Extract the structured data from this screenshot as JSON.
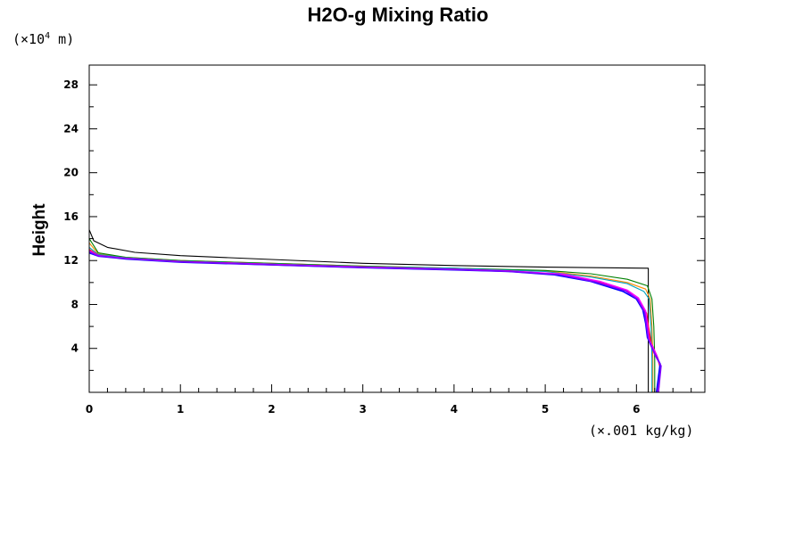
{
  "chart_data": {
    "type": "line",
    "title": "H2O-g Mixing Ratio",
    "ylabel": "Height",
    "xlabel": "",
    "x_unit": "(×.001 kg/kg)",
    "y_unit_prefix": "(×10",
    "y_unit_exp": "4",
    "y_unit_suffix": " m)",
    "xlim": [
      0,
      6.75
    ],
    "ylim": [
      0,
      29.8
    ],
    "x_ticks": [
      0,
      1,
      2,
      3,
      4,
      5,
      6
    ],
    "x_tick_labels": [
      "0",
      "1",
      "2",
      "3",
      "4",
      "5",
      "6"
    ],
    "y_ticks": [
      4,
      8,
      12,
      16,
      20,
      24,
      28
    ],
    "y_tick_labels": [
      "4",
      "8",
      "12",
      "16",
      "20",
      "24",
      "28"
    ],
    "grid": false,
    "legend": "none",
    "series": [
      {
        "color": "#000000",
        "points": [
          [
            6.13,
            0
          ],
          [
            6.13,
            11.3
          ],
          [
            5.0,
            11.4
          ],
          [
            4.0,
            11.55
          ],
          [
            3.0,
            11.75
          ],
          [
            2.0,
            12.1
          ],
          [
            1.0,
            12.45
          ],
          [
            0.5,
            12.75
          ],
          [
            0.2,
            13.2
          ],
          [
            0.05,
            13.8
          ],
          [
            0.0,
            14.8
          ]
        ]
      },
      {
        "color": "#ff8c00",
        "points": [
          [
            6.18,
            0
          ],
          [
            6.18,
            3
          ],
          [
            6.17,
            6
          ],
          [
            6.15,
            8.5
          ],
          [
            6.1,
            9.4
          ],
          [
            5.9,
            10.0
          ],
          [
            5.5,
            10.6
          ],
          [
            5.0,
            11.05
          ],
          [
            4.0,
            11.3
          ],
          [
            3.0,
            11.5
          ],
          [
            2.0,
            11.75
          ],
          [
            1.0,
            12.0
          ],
          [
            0.4,
            12.3
          ],
          [
            0.1,
            12.6
          ],
          [
            0.0,
            13.6
          ]
        ]
      },
      {
        "color": "#008000",
        "points": [
          [
            6.2,
            0
          ],
          [
            6.2,
            3
          ],
          [
            6.19,
            6
          ],
          [
            6.17,
            8.5
          ],
          [
            6.12,
            9.7
          ],
          [
            5.9,
            10.3
          ],
          [
            5.5,
            10.8
          ],
          [
            5.0,
            11.1
          ],
          [
            4.0,
            11.3
          ],
          [
            3.0,
            11.5
          ],
          [
            2.0,
            11.75
          ],
          [
            1.0,
            12.0
          ],
          [
            0.4,
            12.3
          ],
          [
            0.1,
            12.7
          ],
          [
            0.0,
            14.0
          ]
        ]
      },
      {
        "color": "#00a0c0",
        "points": [
          [
            6.17,
            0
          ],
          [
            6.17,
            3
          ],
          [
            6.16,
            6
          ],
          [
            6.14,
            8.5
          ],
          [
            6.08,
            9.2
          ],
          [
            5.9,
            9.9
          ],
          [
            5.5,
            10.5
          ],
          [
            5.0,
            11.0
          ],
          [
            4.0,
            11.3
          ],
          [
            3.0,
            11.45
          ],
          [
            2.0,
            11.7
          ],
          [
            1.0,
            11.95
          ],
          [
            0.4,
            12.25
          ],
          [
            0.1,
            12.55
          ],
          [
            0.0,
            13.2
          ]
        ]
      },
      {
        "color": "#ff0000",
        "points": [
          [
            6.24,
            0
          ],
          [
            6.26,
            2.3
          ],
          [
            6.23,
            3.2
          ],
          [
            6.16,
            4.5
          ],
          [
            6.13,
            6
          ],
          [
            6.11,
            7.2
          ],
          [
            6.0,
            8.5
          ],
          [
            5.9,
            9.2
          ],
          [
            5.6,
            10.0
          ],
          [
            5.2,
            10.7
          ],
          [
            4.6,
            11.05
          ],
          [
            4.0,
            11.2
          ],
          [
            3.0,
            11.4
          ],
          [
            2.0,
            11.65
          ],
          [
            1.0,
            11.9
          ],
          [
            0.4,
            12.2
          ],
          [
            0.1,
            12.45
          ],
          [
            0.0,
            13.0
          ]
        ]
      },
      {
        "color": "#ff00ff",
        "points": [
          [
            6.23,
            0
          ],
          [
            6.26,
            2.5
          ],
          [
            6.22,
            3.4
          ],
          [
            6.14,
            4.8
          ],
          [
            6.12,
            6.2
          ],
          [
            6.1,
            7.4
          ],
          [
            6.02,
            8.6
          ],
          [
            5.9,
            9.3
          ],
          [
            5.6,
            10.1
          ],
          [
            5.2,
            10.75
          ],
          [
            4.6,
            11.05
          ],
          [
            4.0,
            11.2
          ],
          [
            3.0,
            11.4
          ],
          [
            2.0,
            11.65
          ],
          [
            1.0,
            11.9
          ],
          [
            0.4,
            12.2
          ],
          [
            0.1,
            12.45
          ],
          [
            0.0,
            12.9
          ]
        ]
      },
      {
        "color": "#0000ff",
        "points": [
          [
            6.22,
            0
          ],
          [
            6.26,
            2.6
          ],
          [
            6.2,
            3.5
          ],
          [
            6.12,
            5.0
          ],
          [
            6.1,
            6.3
          ],
          [
            6.07,
            7.5
          ],
          [
            6.0,
            8.5
          ],
          [
            5.85,
            9.2
          ],
          [
            5.5,
            10.1
          ],
          [
            5.1,
            10.7
          ],
          [
            4.6,
            11.0
          ],
          [
            4.0,
            11.15
          ],
          [
            3.0,
            11.35
          ],
          [
            2.0,
            11.6
          ],
          [
            1.0,
            11.85
          ],
          [
            0.4,
            12.15
          ],
          [
            0.1,
            12.4
          ],
          [
            0.0,
            12.7
          ]
        ]
      },
      {
        "color": "#8000ff",
        "points": [
          [
            6.24,
            0
          ],
          [
            6.27,
            2.4
          ],
          [
            6.21,
            3.3
          ],
          [
            6.13,
            4.9
          ],
          [
            6.11,
            6.1
          ],
          [
            6.09,
            7.3
          ],
          [
            6.01,
            8.5
          ],
          [
            5.88,
            9.25
          ],
          [
            5.55,
            10.05
          ],
          [
            5.15,
            10.72
          ],
          [
            4.6,
            11.02
          ],
          [
            4.0,
            11.18
          ],
          [
            3.0,
            11.38
          ],
          [
            2.0,
            11.62
          ],
          [
            1.0,
            11.88
          ],
          [
            0.4,
            12.18
          ],
          [
            0.1,
            12.42
          ],
          [
            0.0,
            12.8
          ]
        ]
      }
    ]
  }
}
